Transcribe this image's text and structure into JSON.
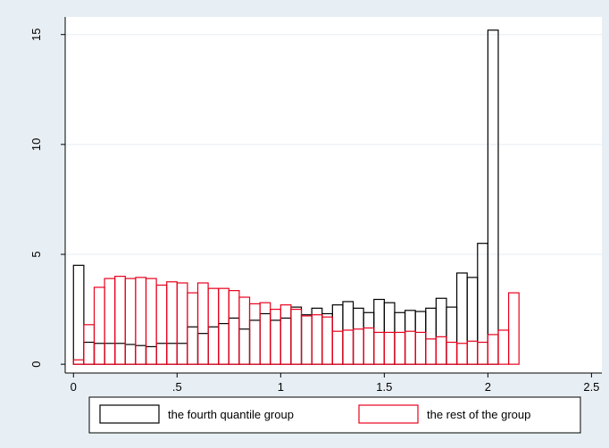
{
  "chart_data": {
    "type": "bar",
    "title": "",
    "xlabel": "",
    "ylabel": "",
    "xlim": [
      -0.04,
      2.55
    ],
    "ylim": [
      -0.4,
      15.8
    ],
    "x_ticks": [
      {
        "value": 0,
        "label": "0"
      },
      {
        "value": 0.5,
        "label": ".5"
      },
      {
        "value": 1,
        "label": "1"
      },
      {
        "value": 1.5,
        "label": "1.5"
      },
      {
        "value": 2,
        "label": "2"
      },
      {
        "value": 2.5,
        "label": "2.5"
      }
    ],
    "y_ticks": [
      {
        "value": 0,
        "label": "0"
      },
      {
        "value": 5,
        "label": "5"
      },
      {
        "value": 10,
        "label": "10"
      },
      {
        "value": 15,
        "label": "15"
      }
    ],
    "grid": true,
    "legend_position": "bottom",
    "bin_width": 0.05,
    "series": [
      {
        "name": "the fourth quantile group",
        "color": "#000000",
        "x": [
          0.025,
          0.075,
          0.125,
          0.175,
          0.225,
          0.275,
          0.325,
          0.375,
          0.425,
          0.475,
          0.525,
          0.575,
          0.625,
          0.675,
          0.725,
          0.775,
          0.825,
          0.875,
          0.925,
          0.975,
          1.025,
          1.075,
          1.125,
          1.175,
          1.225,
          1.275,
          1.325,
          1.375,
          1.425,
          1.475,
          1.525,
          1.575,
          1.625,
          1.675,
          1.725,
          1.775,
          1.825,
          1.875,
          1.925,
          1.975,
          2.025,
          2.075,
          2.125,
          2.175,
          2.225,
          2.275,
          2.325,
          2.375,
          2.425,
          2.475
        ],
        "values": [
          4.5,
          1.0,
          0.95,
          0.95,
          0.95,
          0.9,
          0.85,
          0.8,
          0.95,
          0.95,
          0.95,
          1.7,
          1.4,
          1.7,
          1.85,
          2.1,
          1.6,
          2.0,
          2.3,
          2.0,
          2.1,
          2.6,
          2.25,
          2.55,
          2.3,
          2.7,
          2.85,
          2.55,
          2.35,
          2.95,
          2.8,
          2.35,
          2.45,
          2.4,
          2.55,
          3.0,
          2.6,
          4.15,
          3.95,
          5.5,
          15.2,
          0,
          0,
          0,
          0,
          0,
          0,
          0,
          0,
          0
        ]
      },
      {
        "name": "the rest of the group",
        "color": "#e8001c",
        "x": [
          0.025,
          0.075,
          0.125,
          0.175,
          0.225,
          0.275,
          0.325,
          0.375,
          0.425,
          0.475,
          0.525,
          0.575,
          0.625,
          0.675,
          0.725,
          0.775,
          0.825,
          0.875,
          0.925,
          0.975,
          1.025,
          1.075,
          1.125,
          1.175,
          1.225,
          1.275,
          1.325,
          1.375,
          1.425,
          1.475,
          1.525,
          1.575,
          1.625,
          1.675,
          1.725,
          1.775,
          1.825,
          1.875,
          1.925,
          1.975,
          2.025,
          2.075,
          2.125,
          2.175,
          2.225,
          2.275,
          2.325,
          2.375,
          2.425,
          2.475
        ],
        "values": [
          0.2,
          1.8,
          3.5,
          3.9,
          4.0,
          3.9,
          3.95,
          3.9,
          3.6,
          3.75,
          3.7,
          3.25,
          3.7,
          3.45,
          3.45,
          3.35,
          3.05,
          2.75,
          2.8,
          2.5,
          2.7,
          2.5,
          2.2,
          2.25,
          2.15,
          1.5,
          1.55,
          1.6,
          1.65,
          1.45,
          1.45,
          1.45,
          1.5,
          1.45,
          1.15,
          1.25,
          1.0,
          0.95,
          1.05,
          1.0,
          1.35,
          1.55,
          3.25,
          0,
          0,
          0,
          0,
          0,
          0,
          0
        ]
      }
    ]
  }
}
